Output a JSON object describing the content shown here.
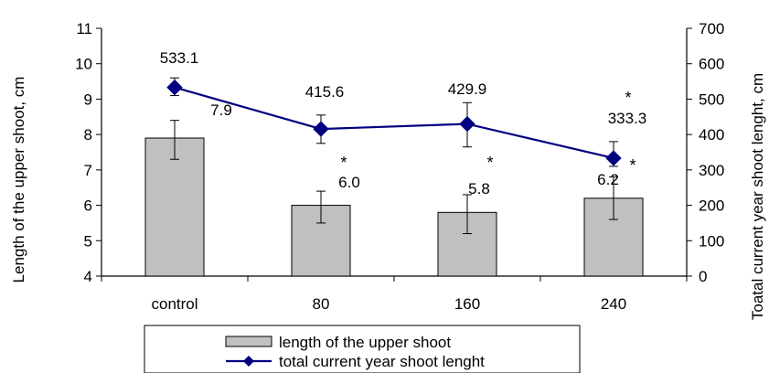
{
  "chart_data": {
    "type": "bar",
    "categories": [
      "control",
      "80",
      "160",
      "240"
    ],
    "left_axis": {
      "label": "Length of the upper shoot, cm",
      "range": [
        4,
        11
      ],
      "ticks": [
        4,
        5,
        6,
        7,
        8,
        9,
        10,
        11
      ]
    },
    "right_axis": {
      "label": "Toatal current year shoot lenght, cm",
      "range": [
        0,
        700
      ],
      "ticks": [
        0,
        100,
        200,
        300,
        400,
        500,
        600,
        700
      ]
    },
    "series": [
      {
        "name": "length of the upper shoot",
        "type": "bar",
        "axis": "left",
        "values": [
          7.9,
          6.0,
          5.8,
          6.2
        ],
        "value_labels": [
          "7.9",
          "6.0",
          "5.8",
          "6.2"
        ],
        "error_low": [
          7.3,
          5.5,
          5.2,
          5.6
        ],
        "error_high": [
          8.4,
          6.4,
          6.3,
          6.8
        ],
        "significance": [
          "",
          "*",
          "*",
          "*"
        ],
        "color": "#c0c0c0"
      },
      {
        "name": "total current year shoot lenght",
        "type": "line",
        "axis": "right",
        "values": [
          533.1,
          415.6,
          429.9,
          333.3
        ],
        "value_labels": [
          "533.1",
          "415.6",
          "429.9",
          "333.3"
        ],
        "error_low": [
          510,
          375,
          365,
          310
        ],
        "error_high": [
          560,
          455,
          490,
          380
        ],
        "significance": [
          "",
          "",
          "",
          "*"
        ],
        "color": "#000080"
      }
    ],
    "grid": false,
    "legend_position": "bottom"
  }
}
